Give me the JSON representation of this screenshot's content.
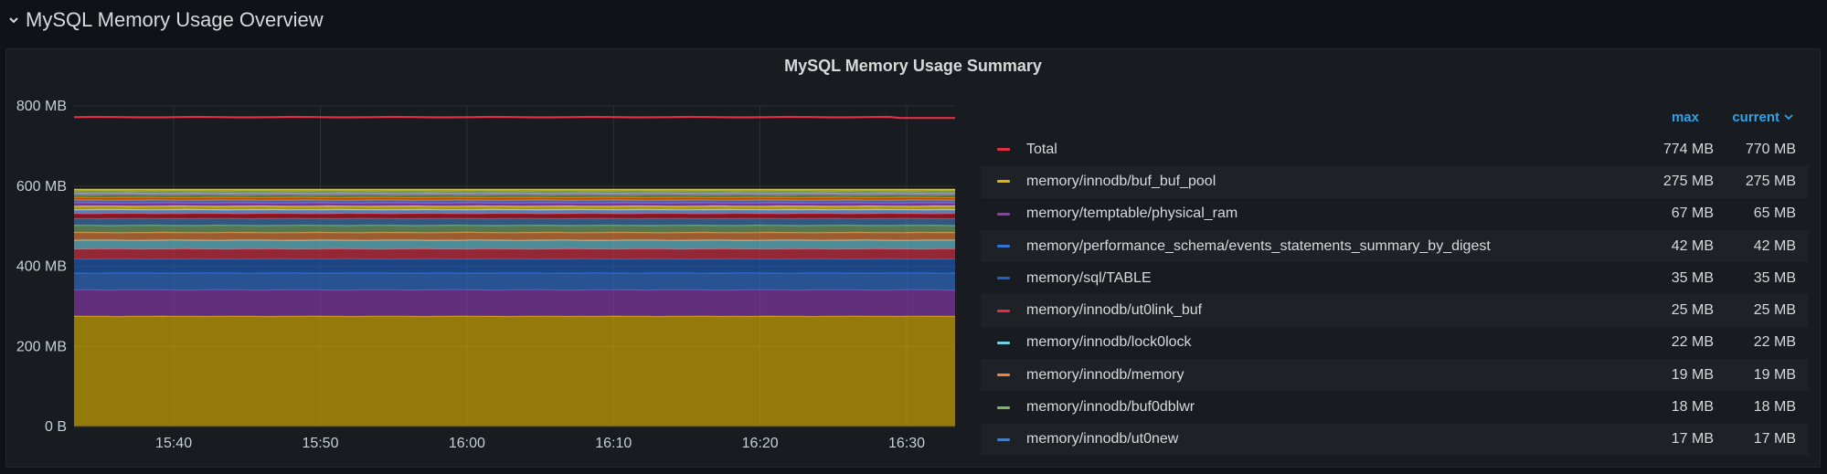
{
  "row": {
    "title": "MySQL Memory Usage Overview"
  },
  "panel": {
    "title": "MySQL Memory Usage Summary"
  },
  "legend": {
    "col_max": "max",
    "col_current": "current"
  },
  "chart_data": {
    "type": "area",
    "stacked": true,
    "title": "MySQL Memory Usage Summary",
    "x_ticks": [
      "15:40",
      "15:50",
      "16:00",
      "16:10",
      "16:20",
      "16:30"
    ],
    "x_tick_minutes": [
      940,
      950,
      960,
      970,
      980,
      990
    ],
    "x_range_minutes": [
      933.2,
      993.3
    ],
    "y_ticks": [
      "0 B",
      "200 MB",
      "400 MB",
      "600 MB",
      "800 MB"
    ],
    "y_tick_values": [
      0,
      200,
      400,
      600,
      800
    ],
    "ylim": [
      0,
      800
    ],
    "y_unit": "MB",
    "grid": true,
    "legend_position": "right",
    "series": [
      {
        "name": "Total",
        "color": "#e02f44",
        "max": "774 MB",
        "current": "770 MB",
        "value": 772,
        "stack": false
      },
      {
        "name": "memory/innodb/buf_buf_pool",
        "color": "#e0b400",
        "max": "275 MB",
        "current": "275 MB",
        "value": 275
      },
      {
        "name": "memory/temptable/physical_ram",
        "color": "#8f3bb8",
        "max": "67 MB",
        "current": "65 MB",
        "value": 66
      },
      {
        "name": "memory/performance_schema/events_statements_summary_by_digest",
        "color": "#3274d9",
        "max": "42 MB",
        "current": "42 MB",
        "value": 42
      },
      {
        "name": "memory/sql/TABLE",
        "color": "#1f60c4",
        "max": "35 MB",
        "current": "35 MB",
        "value": 35
      },
      {
        "name": "memory/innodb/ut0link_buf",
        "color": "#e02f44",
        "max": "25 MB",
        "current": "25 MB",
        "value": 25
      },
      {
        "name": "memory/innodb/lock0lock",
        "color": "#6ed0e0",
        "max": "22 MB",
        "current": "22 MB",
        "value": 22
      },
      {
        "name": "memory/innodb/memory",
        "color": "#ef843c",
        "max": "19 MB",
        "current": "19 MB",
        "value": 19
      },
      {
        "name": "memory/innodb/buf0dblwr",
        "color": "#7eb26d",
        "max": "18 MB",
        "current": "18 MB",
        "value": 18
      },
      {
        "name": "memory/innodb/ut0new",
        "color": "#447ebc",
        "max": "17 MB",
        "current": "17 MB",
        "value": 17
      }
    ],
    "extra_bands": [
      {
        "color": "#c4162a",
        "value": 12
      },
      {
        "color": "#8ab8ff",
        "value": 10
      },
      {
        "color": "#fade2a",
        "value": 9
      },
      {
        "color": "#a352cc",
        "value": 8
      },
      {
        "color": "#5794f2",
        "value": 7
      },
      {
        "color": "#ff780a",
        "value": 7
      },
      {
        "color": "#56a64b",
        "value": 6
      },
      {
        "color": "#ca95e5",
        "value": 5
      },
      {
        "color": "#73bf69",
        "value": 5
      },
      {
        "color": "#f2cc0c",
        "value": 4
      }
    ]
  }
}
